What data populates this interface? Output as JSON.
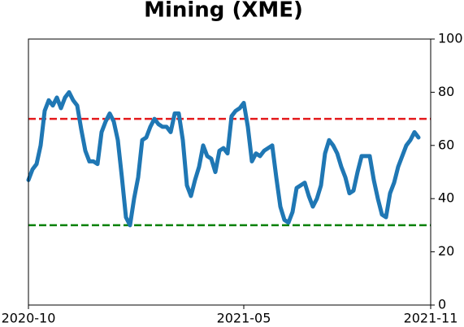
{
  "chart_data": {
    "type": "line",
    "title": "Mining (XME)",
    "series": [
      {
        "color": "#1f77b4",
        "values": [
          47,
          51,
          53,
          60,
          73,
          77,
          75,
          78,
          74,
          78,
          80,
          77,
          75,
          66,
          58,
          54,
          54,
          53,
          65,
          69,
          72,
          69,
          62,
          48,
          33,
          30,
          40,
          48,
          62,
          63,
          67,
          70,
          68,
          67,
          67,
          65,
          72,
          72,
          62,
          45,
          41,
          47,
          52,
          60,
          56,
          55,
          50,
          58,
          59,
          57,
          71,
          73,
          74,
          76,
          67,
          54,
          57,
          56,
          58,
          59,
          60,
          48,
          37,
          32,
          31,
          35,
          44,
          45,
          46,
          41,
          37,
          40,
          45,
          57,
          62,
          60,
          57,
          52,
          48,
          42,
          43,
          50,
          56,
          56,
          56,
          47,
          40,
          34,
          33,
          42,
          46,
          52,
          56,
          60,
          62,
          65,
          63
        ]
      }
    ],
    "xlim": [
      0,
      99
    ],
    "xticks": [
      {
        "value": 0,
        "label": "2020-10"
      },
      {
        "value": 53,
        "label": "2021-05"
      },
      {
        "value": 99,
        "label": "2021-11"
      }
    ],
    "ylim": [
      0,
      100
    ],
    "yticks": [
      0,
      20,
      40,
      60,
      80,
      100
    ],
    "hlines": [
      {
        "value": 70,
        "color": "#e41a1c"
      },
      {
        "value": 30,
        "color": "#008000"
      }
    ]
  }
}
